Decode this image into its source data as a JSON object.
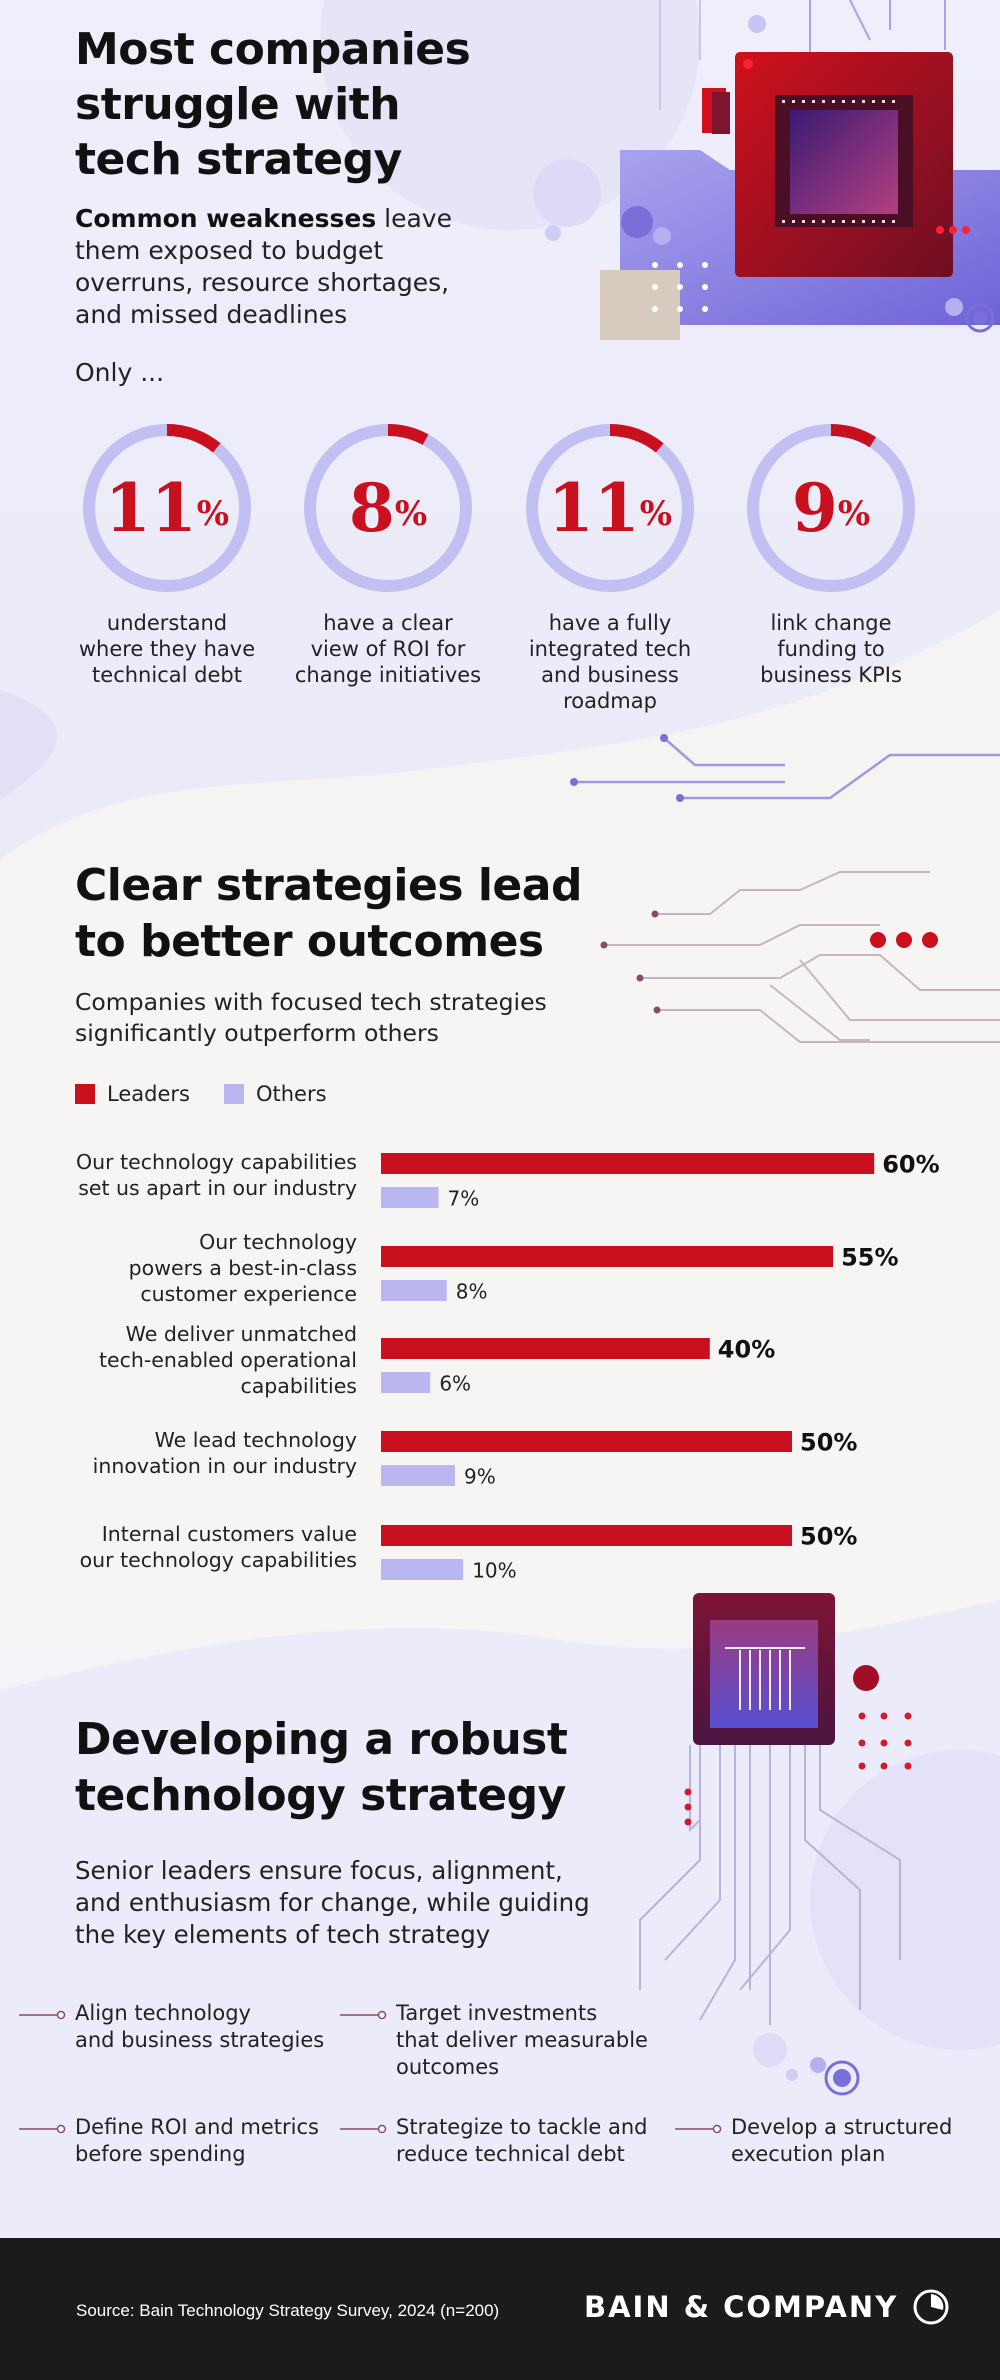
{
  "section1": {
    "title_lines": [
      "Most companies",
      "struggle with",
      "tech strategy"
    ],
    "lead_bold": "Common weaknesses",
    "lead_rest_lines": [
      " leave",
      "them exposed to budget",
      "overruns, resource shortages,",
      "and missed deadlines"
    ],
    "only_label": "Only ...",
    "stats": [
      {
        "value": 11,
        "pct": "%",
        "caption_lines": [
          "understand",
          "where they have",
          "technical debt"
        ]
      },
      {
        "value": 8,
        "pct": "%",
        "caption_lines": [
          "have a clear",
          "view of ROI for",
          "change initiatives"
        ]
      },
      {
        "value": 11,
        "pct": "%",
        "caption_lines": [
          "have a fully",
          "integrated tech",
          "and business",
          "roadmap"
        ]
      },
      {
        "value": 9,
        "pct": "%",
        "caption_lines": [
          "link change",
          "funding to",
          "business KPIs"
        ]
      }
    ]
  },
  "section2": {
    "title_lines": [
      "Clear strategies lead",
      "to better outcomes"
    ],
    "subtitle_lines": [
      "Companies with focused tech strategies",
      "significantly outperform others"
    ],
    "legend": {
      "leaders": "Leaders",
      "others": "Others"
    }
  },
  "chart_data": {
    "type": "bar",
    "orientation": "horizontal",
    "categories": [
      [
        "Our technology capabilities",
        "set us apart in our industry"
      ],
      [
        "Our technology",
        "powers a best-in-class",
        "customer experience"
      ],
      [
        "We deliver unmatched",
        "tech-enabled operational",
        "capabilities"
      ],
      [
        "We lead technology",
        "innovation in our industry"
      ],
      [
        "Internal customers value",
        "our technology capabilities"
      ]
    ],
    "series": [
      {
        "name": "Leaders",
        "values": [
          60,
          55,
          40,
          50,
          50
        ],
        "labels": [
          "60%",
          "55%",
          "40%",
          "50%",
          "50%"
        ]
      },
      {
        "name": "Others",
        "values": [
          7,
          8,
          6,
          9,
          10
        ],
        "labels": [
          "7%",
          "8%",
          "6%",
          "9%",
          "10%"
        ]
      }
    ],
    "legend_position": "top-left",
    "grid": false
  },
  "section3": {
    "title_lines": [
      "Developing a robust",
      "technology strategy"
    ],
    "lead_lines": [
      "Senior leaders ensure focus, alignment,",
      "and enthusiasm for change, while guiding",
      "the key elements of tech strategy"
    ],
    "steps": [
      [
        "Align technology",
        "and business strategies"
      ],
      [
        "Target investments",
        "that deliver measurable",
        "outcomes"
      ],
      [
        "Define ROI and metrics",
        "before spending"
      ],
      [
        "Strategize to tackle and",
        "reduce technical debt"
      ],
      [
        "Develop a structured",
        "execution plan"
      ]
    ]
  },
  "footer": {
    "source": "Source: Bain Technology Strategy Survey, 2024 (n=200)",
    "brand": "BAIN & COMPANY"
  },
  "colors": {
    "red": "#c8101e",
    "lavender": "#b9b6f0",
    "ring_track": "#c2bff2",
    "dark": "#1b1b1d",
    "accent_blue": "#7a6fd8"
  },
  "icons": [
    "processor-chip-icon",
    "circuit-lines-icon",
    "bain-logo-icon"
  ]
}
